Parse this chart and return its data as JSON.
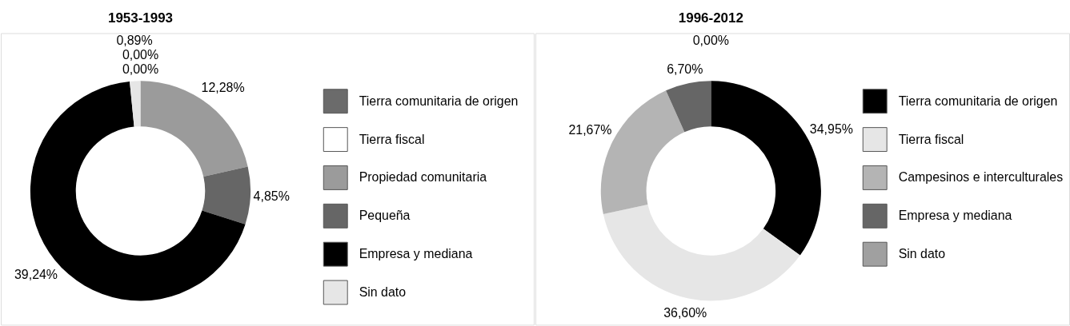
{
  "chart_data": [
    {
      "type": "donut",
      "title": "1953-1993",
      "categories": [
        "Tierra comunitaria de origen",
        "Tierra fiscal",
        "Propiedad comunitaria",
        "Pequeña",
        "Empresa y mediana",
        "Sin dato"
      ],
      "values": [
        0.0,
        0.0,
        12.28,
        4.85,
        39.24,
        0.89
      ],
      "colors": [
        "#6b6b6b",
        "#ffffff",
        "#9b9b9b",
        "#666666",
        "#000000",
        "#e6e6e6"
      ],
      "value_labels": [
        "0,00%",
        "0,00%",
        "12,28%",
        "4,85%",
        "39,24%",
        "0,89%"
      ],
      "legend": "right"
    },
    {
      "type": "donut",
      "title": "1996-2012",
      "categories": [
        "Tierra comunitaria de origen",
        "Tierra fiscal",
        "Campesinos e interculturales",
        "Empresa y mediana",
        "Sin dato"
      ],
      "values": [
        34.95,
        36.6,
        21.67,
        6.7,
        0.0
      ],
      "colors": [
        "#000000",
        "#e6e6e6",
        "#b4b4b4",
        "#666666",
        "#a0a0a0"
      ],
      "value_labels": [
        "34,95%",
        "36,60%",
        "21,67%",
        "6,70%",
        "0,00%"
      ],
      "legend": "right"
    }
  ]
}
